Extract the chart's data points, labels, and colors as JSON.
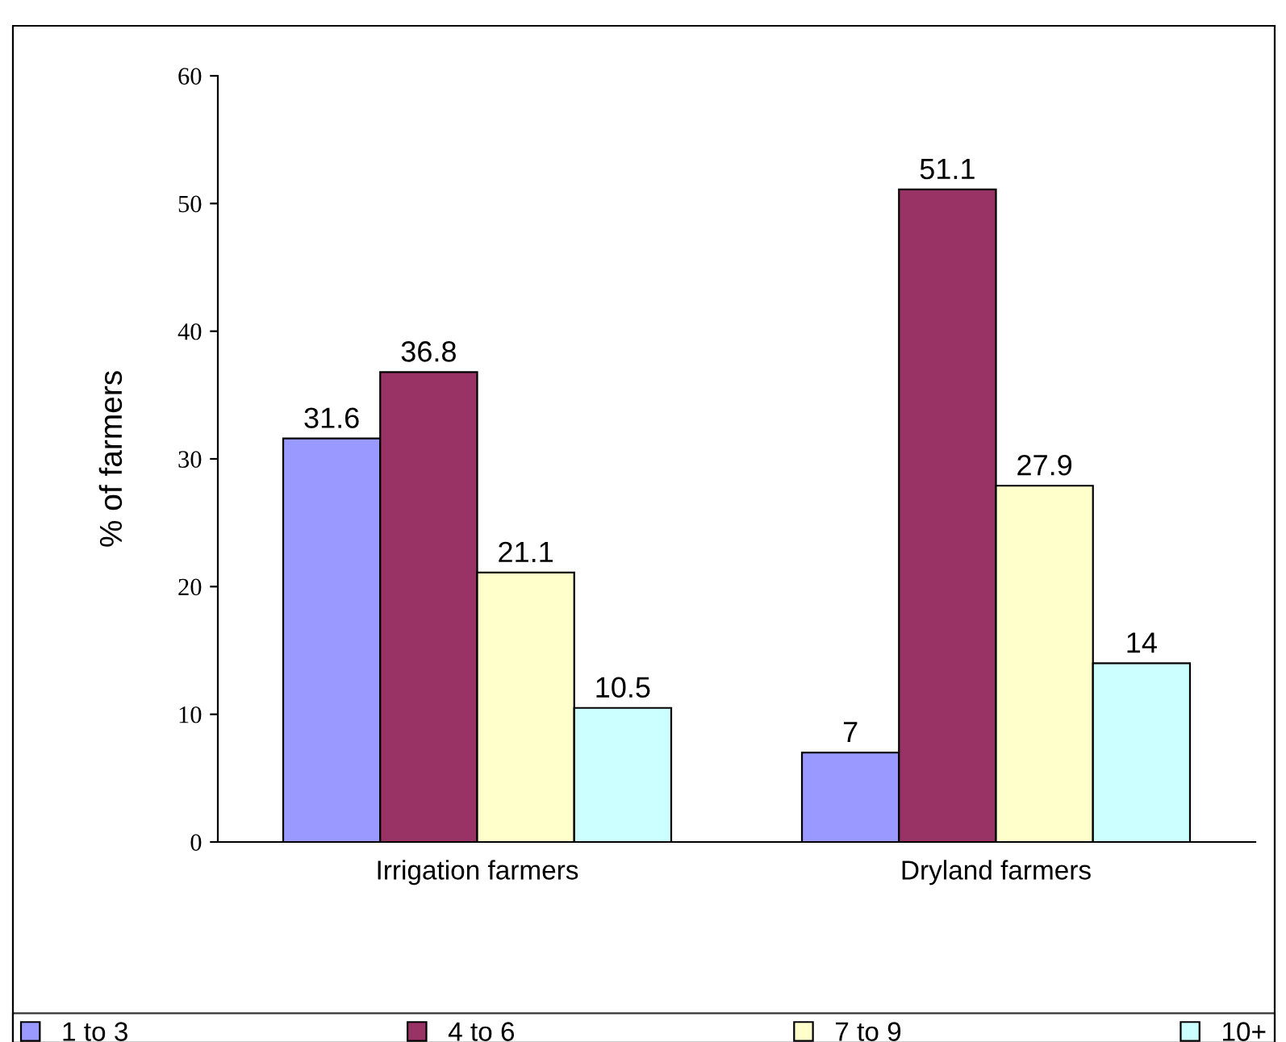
{
  "chart_data": {
    "type": "bar",
    "categories": [
      "Irrigation farmers",
      "Dryland farmers"
    ],
    "ylabel": "% of farmers",
    "series": [
      {
        "name": "1 to 3",
        "color": "#9999ff",
        "values": [
          31.6,
          7
        ]
      },
      {
        "name": "4 to 6",
        "color": "#993366",
        "values": [
          36.8,
          51.1
        ]
      },
      {
        "name": "7 to 9",
        "color": "#ffffcc",
        "values": [
          21.1,
          27.9
        ]
      },
      {
        "name": "10+",
        "color": "#ccffff",
        "values": [
          10.5,
          14
        ]
      }
    ],
    "ylim": [
      0,
      60
    ],
    "yticks": [
      0,
      10,
      20,
      30,
      40,
      50,
      60
    ],
    "grid": false,
    "legend": "bottom",
    "data_labels": true
  }
}
